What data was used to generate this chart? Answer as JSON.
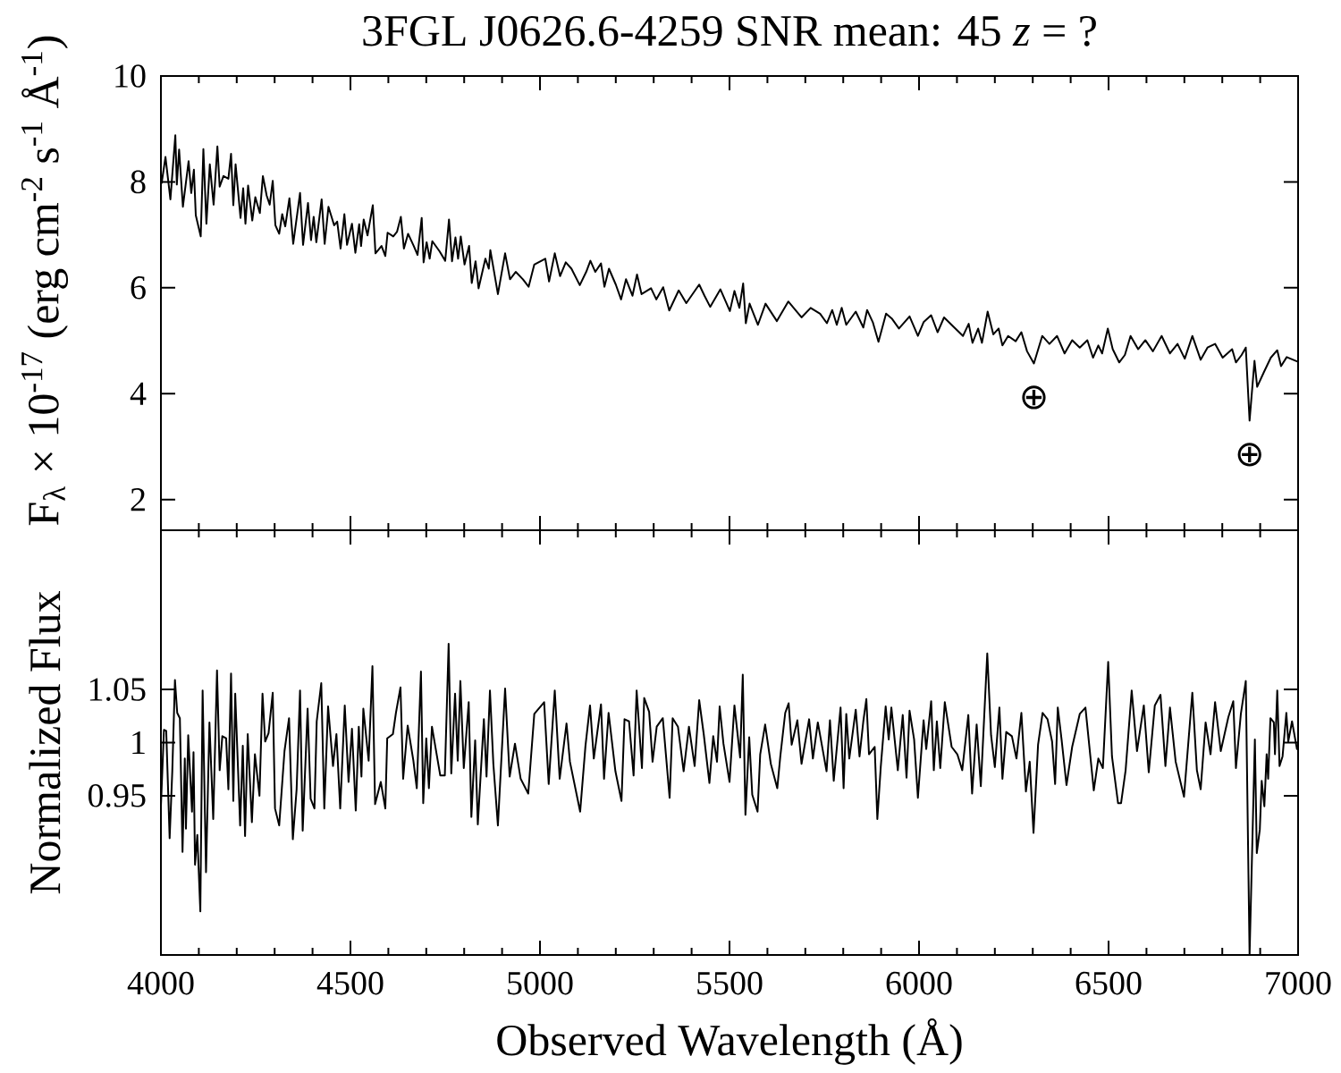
{
  "chart_data": [
    {
      "type": "line",
      "title": "3FGL J0626.6-4259 SNR mean: 45 *z* = ?",
      "ylabel": "F$_{λ}$ × 10$^{-17}$ (erg cm$^{-2}$ s$^{-1}$ Å$^{-1}$)",
      "color": "#000000",
      "tick_labels": "y",
      "xlim": [
        4000,
        7000
      ],
      "ylim": [
        1.42,
        10
      ],
      "yticks": [
        2,
        4,
        6,
        8,
        10
      ],
      "xticks": [
        4000,
        {
          "value": 4100,
          "label": null
        },
        {
          "value": 4200,
          "label": null
        },
        {
          "value": 4300,
          "label": null
        },
        {
          "value": 4400,
          "label": null
        },
        4500,
        {
          "value": 4600,
          "label": null
        },
        {
          "value": 4700,
          "label": null
        },
        {
          "value": 4800,
          "label": null
        },
        {
          "value": 4900,
          "label": null
        },
        5000,
        {
          "value": 5100,
          "label": null
        },
        {
          "value": 5200,
          "label": null
        },
        {
          "value": 5300,
          "label": null
        },
        {
          "value": 5400,
          "label": null
        },
        5500,
        {
          "value": 5600,
          "label": null
        },
        {
          "value": 5700,
          "label": null
        },
        {
          "value": 5800,
          "label": null
        },
        {
          "value": 5900,
          "label": null
        },
        6000,
        {
          "value": 6100,
          "label": null
        },
        {
          "value": 6200,
          "label": null
        },
        {
          "value": 6300,
          "label": null
        },
        {
          "value": 6400,
          "label": null
        },
        6500,
        {
          "value": 6600,
          "label": null
        },
        {
          "value": 6700,
          "label": null
        },
        {
          "value": 6800,
          "label": null
        },
        {
          "value": 6900,
          "label": null
        },
        7000
      ],
      "annotations": [
        {
          "text": "⊕",
          "x": 6303,
          "y": 4.57
        },
        {
          "text": "⊕",
          "x": 6872,
          "y": 3.49
        }
      ],
      "x": [
        4002,
        4012,
        4025,
        4038,
        4042,
        4048,
        4058,
        4073,
        4080,
        4087,
        4092,
        4105,
        4112,
        4120,
        4129,
        4139,
        4149,
        4155,
        4165,
        4178,
        4185,
        4191,
        4197,
        4210,
        4217,
        4223,
        4230,
        4241,
        4249,
        4261,
        4269,
        4279,
        4287,
        4295,
        4302,
        4312,
        4320,
        4328,
        4339,
        4349,
        4367,
        4375,
        4388,
        4396,
        4403,
        4410,
        4424,
        4432,
        4442,
        4457,
        4465,
        4474,
        4484,
        4491,
        4504,
        4513,
        4523,
        4528,
        4535,
        4545,
        4559,
        4566,
        4582,
        4592,
        4598,
        4613,
        4623,
        4633,
        4641,
        4652,
        4667,
        4677,
        4688,
        4693,
        4701,
        4709,
        4716,
        4735,
        4750,
        4760,
        4768,
        4777,
        4784,
        4791,
        4801,
        4813,
        4820,
        4830,
        4838,
        4856,
        4865,
        4869,
        4879,
        4889,
        4908,
        4921,
        4936,
        4955,
        4970,
        4985,
        5014,
        5024,
        5039,
        5053,
        5068,
        5083,
        5105,
        5122,
        5133,
        5146,
        5161,
        5170,
        5182,
        5200,
        5214,
        5227,
        5244,
        5256,
        5268,
        5293,
        5307,
        5325,
        5341,
        5366,
        5386,
        5420,
        5434,
        5449,
        5476,
        5501,
        5513,
        5526,
        5536,
        5543,
        5553,
        5575,
        5595,
        5625,
        5655,
        5690,
        5714,
        5739,
        5757,
        5771,
        5783,
        5796,
        5808,
        5833,
        5853,
        5863,
        5878,
        5893,
        5913,
        5928,
        5947,
        5975,
        5997,
        6012,
        6032,
        6049,
        6066,
        6096,
        6116,
        6131,
        6141,
        6156,
        6166,
        6181,
        6196,
        6210,
        6220,
        6235,
        6255,
        6270,
        6285,
        6303,
        6325,
        6344,
        6364,
        6384,
        6404,
        6424,
        6444,
        6459,
        6473,
        6483,
        6498,
        6511,
        6528,
        6543,
        6558,
        6578,
        6597,
        6617,
        6640,
        6662,
        6682,
        6701,
        6721,
        6743,
        6761,
        6781,
        6801,
        6826,
        6836,
        6851,
        6862,
        6872,
        6885,
        6892,
        6910,
        6928,
        6945,
        6955,
        6970,
        6997
      ],
      "values": [
        7.98,
        8.47,
        7.67,
        8.88,
        7.95,
        8.61,
        7.53,
        8.39,
        7.79,
        8.23,
        7.37,
        6.97,
        8.62,
        7.21,
        8.33,
        7.57,
        8.67,
        7.91,
        8.11,
        8.06,
        8.53,
        7.56,
        8.33,
        7.32,
        7.88,
        7.21,
        7.93,
        7.27,
        7.71,
        7.41,
        8.11,
        7.74,
        7.57,
        8.02,
        7.18,
        7.02,
        7.39,
        7.16,
        7.69,
        6.83,
        7.79,
        6.81,
        7.6,
        6.9,
        7.34,
        6.86,
        7.67,
        6.83,
        7.53,
        7.18,
        7.25,
        6.74,
        7.39,
        6.81,
        7.21,
        6.66,
        7.2,
        6.79,
        7.29,
        6.99,
        7.56,
        6.65,
        6.79,
        6.6,
        7.04,
        6.97,
        7.06,
        7.34,
        6.74,
        7.02,
        6.79,
        6.62,
        7.32,
        6.48,
        6.86,
        6.55,
        6.88,
        6.69,
        6.51,
        7.29,
        6.5,
        6.95,
        6.55,
        6.97,
        6.44,
        6.79,
        6.09,
        6.5,
        5.99,
        6.55,
        6.36,
        6.71,
        6.3,
        5.88,
        6.65,
        6.16,
        6.3,
        6.16,
        6.02,
        6.44,
        6.55,
        6.12,
        6.65,
        6.22,
        6.48,
        6.36,
        6.05,
        6.3,
        6.51,
        6.3,
        6.46,
        6.02,
        6.36,
        6.06,
        5.78,
        6.16,
        5.85,
        6.25,
        5.88,
        5.99,
        5.78,
        6.01,
        5.57,
        5.95,
        5.71,
        6.06,
        5.85,
        5.64,
        5.97,
        5.56,
        5.94,
        5.62,
        6.08,
        5.33,
        5.7,
        5.3,
        5.7,
        5.37,
        5.74,
        5.44,
        5.62,
        5.51,
        5.33,
        5.58,
        5.3,
        5.62,
        5.3,
        5.55,
        5.25,
        5.58,
        5.35,
        4.98,
        5.51,
        5.42,
        5.23,
        5.46,
        5.09,
        5.35,
        5.48,
        5.16,
        5.44,
        5.23,
        5.09,
        5.32,
        4.96,
        5.23,
        4.96,
        5.55,
        5.12,
        5.23,
        4.91,
        5.09,
        4.99,
        5.16,
        4.8,
        4.57,
        5.09,
        4.94,
        5.09,
        4.76,
        5.01,
        4.87,
        5.01,
        4.68,
        4.91,
        4.76,
        5.23,
        4.84,
        4.59,
        4.73,
        5.09,
        4.84,
        5.01,
        4.8,
        5.09,
        4.76,
        4.94,
        4.66,
        5.09,
        4.64,
        4.87,
        4.94,
        4.68,
        4.84,
        4.59,
        4.73,
        4.87,
        3.49,
        4.62,
        4.13,
        4.41,
        4.68,
        4.82,
        4.52,
        4.69,
        4.61
      ]
    },
    {
      "type": "line",
      "xlabel": "Observed Wavelength (Å)",
      "ylabel": "Normalized Flux",
      "color": "#000000",
      "xlim": [
        4000,
        7000
      ],
      "ylim": [
        0.8,
        1.2
      ],
      "yticks": [
        0.95,
        1,
        1.05
      ],
      "xticks": [
        4000,
        {
          "value": 4100,
          "label": null
        },
        {
          "value": 4200,
          "label": null
        },
        {
          "value": 4300,
          "label": null
        },
        {
          "value": 4400,
          "label": null
        },
        4500,
        {
          "value": 4600,
          "label": null
        },
        {
          "value": 4700,
          "label": null
        },
        {
          "value": 4800,
          "label": null
        },
        {
          "value": 4900,
          "label": null
        },
        5000,
        {
          "value": 5100,
          "label": null
        },
        {
          "value": 5200,
          "label": null
        },
        {
          "value": 5300,
          "label": null
        },
        {
          "value": 5400,
          "label": null
        },
        5500,
        {
          "value": 5600,
          "label": null
        },
        {
          "value": 5700,
          "label": null
        },
        {
          "value": 5800,
          "label": null
        },
        {
          "value": 5900,
          "label": null
        },
        6000,
        {
          "value": 6100,
          "label": null
        },
        {
          "value": 6200,
          "label": null
        },
        {
          "value": 6300,
          "label": null
        },
        {
          "value": 6400,
          "label": null
        },
        6500,
        {
          "value": 6600,
          "label": null
        },
        {
          "value": 6700,
          "label": null
        },
        {
          "value": 6800,
          "label": null
        },
        {
          "value": 6900,
          "label": null
        },
        7000
      ],
      "x": [
        4000,
        4008,
        4014,
        4023,
        4030,
        4037,
        4043,
        4050,
        4057,
        4063,
        4066,
        4072,
        4082,
        4086,
        4090,
        4096,
        4104,
        4110,
        4119,
        4128,
        4138,
        4148,
        4155,
        4162,
        4172,
        4178,
        4185,
        4191,
        4196,
        4209,
        4216,
        4222,
        4229,
        4240,
        4248,
        4260,
        4268,
        4275,
        4284,
        4295,
        4301,
        4312,
        4326,
        4338,
        4348,
        4358,
        4367,
        4374,
        4387,
        4395,
        4405,
        4411,
        4423,
        4431,
        4441,
        4454,
        4463,
        4473,
        4485,
        4495,
        4504,
        4514,
        4522,
        4529,
        4534,
        4548,
        4558,
        4565,
        4580,
        4592,
        4597,
        4612,
        4620,
        4632,
        4639,
        4651,
        4666,
        4675,
        4686,
        4692,
        4700,
        4707,
        4715,
        4737,
        4749,
        4759,
        4766,
        4776,
        4783,
        4790,
        4799,
        4812,
        4819,
        4829,
        4836,
        4852,
        4859,
        4868,
        4877,
        4889,
        4908,
        4920,
        4934,
        4949,
        4969,
        4985,
        5011,
        5023,
        5039,
        5052,
        5070,
        5079,
        5106,
        5120,
        5132,
        5142,
        5161,
        5169,
        5181,
        5199,
        5215,
        5223,
        5235,
        5247,
        5255,
        5269,
        5275,
        5288,
        5297,
        5308,
        5324,
        5342,
        5350,
        5364,
        5379,
        5393,
        5408,
        5420,
        5432,
        5447,
        5457,
        5467,
        5474,
        5484,
        5500,
        5513,
        5528,
        5535,
        5542,
        5552,
        5560,
        5574,
        5581,
        5594,
        5609,
        5626,
        5634,
        5647,
        5656,
        5664,
        5679,
        5690,
        5710,
        5720,
        5733,
        5756,
        5765,
        5775,
        5793,
        5801,
        5808,
        5816,
        5833,
        5843,
        5853,
        5861,
        5868,
        5883,
        5890,
        5899,
        5912,
        5920,
        5927,
        5944,
        5957,
        5967,
        5975,
        5987,
        5997,
        6012,
        6019,
        6032,
        6039,
        6047,
        6056,
        6068,
        6086,
        6101,
        6114,
        6130,
        6140,
        6152,
        6163,
        6180,
        6190,
        6200,
        6212,
        6220,
        6230,
        6245,
        6257,
        6270,
        6282,
        6292,
        6302,
        6314,
        6326,
        6339,
        6351,
        6359,
        6366,
        6376,
        6389,
        6404,
        6424,
        6439,
        6461,
        6473,
        6485,
        6499,
        6509,
        6525,
        6533,
        6545,
        6561,
        6575,
        6593,
        6606,
        6622,
        6637,
        6650,
        6662,
        6677,
        6699,
        6721,
        6733,
        6743,
        6756,
        6769,
        6781,
        6796,
        6816,
        6829,
        6836,
        6849,
        6862,
        6872,
        6886,
        6891,
        6899,
        6904,
        6911,
        6917,
        6921,
        6927,
        6936,
        6939,
        6945,
        6951,
        6959,
        6969,
        6974,
        6984,
        6997
      ],
      "values": [
        0.94,
        1.012,
        1.011,
        0.91,
        0.973,
        1.059,
        1.028,
        1.023,
        0.897,
        0.985,
        0.919,
        1.007,
        0.935,
        0.991,
        0.885,
        0.913,
        0.841,
        1.049,
        0.878,
        1.019,
        0.928,
        1.068,
        0.974,
        1.006,
        1.004,
        0.956,
        1.065,
        0.945,
        1.046,
        0.922,
        0.997,
        0.912,
        1.008,
        0.925,
        0.989,
        0.95,
        1.046,
        1.001,
        1.009,
        1.047,
        0.938,
        0.922,
        0.992,
        1.023,
        0.909,
        0.956,
        1.049,
        0.917,
        1.032,
        0.947,
        0.938,
        1.02,
        1.056,
        0.938,
        1.034,
        0.978,
        1.008,
        0.938,
        1.035,
        0.963,
        1.013,
        0.936,
        1.015,
        0.968,
        1.032,
        0.983,
        1.072,
        0.942,
        0.963,
        0.938,
        1.004,
        1.008,
        1.028,
        1.052,
        0.966,
        1.016,
        0.983,
        0.957,
        1.067,
        0.943,
        1.004,
        0.957,
        1.015,
        0.969,
        0.969,
        1.093,
        0.971,
        1.046,
        0.983,
        1.058,
        0.976,
        1.038,
        0.93,
        1.002,
        0.923,
        1.022,
        0.968,
        1.049,
        0.98,
        0.922,
        1.051,
        0.968,
        0.999,
        0.966,
        0.952,
        1.027,
        1.038,
        0.961,
        1.049,
        0.966,
        1.018,
        0.982,
        0.935,
        0.997,
        1.035,
        0.985,
        1.036,
        0.966,
        1.028,
        0.973,
        0.945,
        1.022,
        1.02,
        0.969,
        1.049,
        0.976,
        1.042,
        1.029,
        0.982,
        1.015,
        1.023,
        0.948,
        1.023,
        1.015,
        0.973,
        1.015,
        0.978,
        1.04,
        1.008,
        0.962,
        1.006,
        0.982,
        1.034,
        0.999,
        0.963,
        1.035,
        0.986,
        1.064,
        0.932,
        1.005,
        0.951,
        0.935,
        0.989,
        1.017,
        0.98,
        0.957,
        0.987,
        1.028,
        1.037,
        0.998,
        1.021,
        0.98,
        1.022,
        0.985,
        1.019,
        0.973,
        1.021,
        0.964,
        1.033,
        0.957,
        1.027,
        0.985,
        1.031,
        0.987,
        1.02,
        1.041,
        0.989,
        0.996,
        0.928,
        0.977,
        1.034,
        1.003,
        1.033,
        0.974,
        1.026,
        0.967,
        1.03,
        1.003,
        0.948,
        1.021,
        0.994,
        1.039,
        0.974,
        1.02,
        0.976,
        1.038,
        0.996,
        0.989,
        0.974,
        1.026,
        0.952,
        1.017,
        0.959,
        1.084,
        1.007,
        0.977,
        1.033,
        0.966,
        1.01,
        1.006,
        0.985,
        1.028,
        0.954,
        0.982,
        0.915,
        0.998,
        1.028,
        1.022,
        1.001,
        0.961,
        1.033,
        1.003,
        0.96,
        0.996,
        1.027,
        1.033,
        0.955,
        0.985,
        0.976,
        1.076,
        0.987,
        0.943,
        0.943,
        0.974,
        1.049,
        0.992,
        1.035,
        0.972,
        1.035,
        1.045,
        0.978,
        1.033,
        0.982,
        0.949,
        1.047,
        0.974,
        0.956,
        1.019,
        0.989,
        1.038,
        0.992,
        1.024,
        1.039,
        0.976,
        1.027,
        1.058,
        0.8,
        1.003,
        0.896,
        0.918,
        0.964,
        0.94,
        0.989,
        0.966,
        1.023,
        1.019,
        0.989,
        1.049,
        0.978,
        0.987,
        1.028,
        1.001,
        1.02,
        0.994
      ]
    }
  ]
}
